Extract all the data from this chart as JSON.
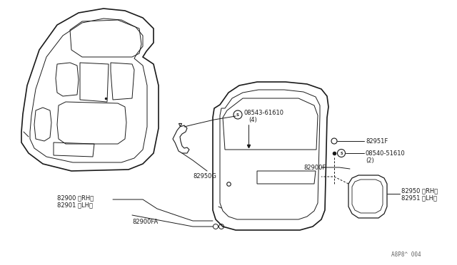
{
  "bg_color": "#ffffff",
  "line_color": "#1a1a1a",
  "text_color": "#1a1a1a",
  "watermark": "A8P8^ 004",
  "label_82950G": "82950G",
  "label_08543": "08543-61610",
  "label_08543_qty": "(4)",
  "label_82900RH": "82900 〈RH〉",
  "label_82901LH": "82901 〈LH〉",
  "label_82900FA": "82900FA",
  "label_82951F": "82951F",
  "label_08540": "08540-51610",
  "label_08540_qty": "(2)",
  "label_82900F": "82900F",
  "label_82950RH": "82950 〈RH〉",
  "label_82951LH": "82951 〈LH〉"
}
